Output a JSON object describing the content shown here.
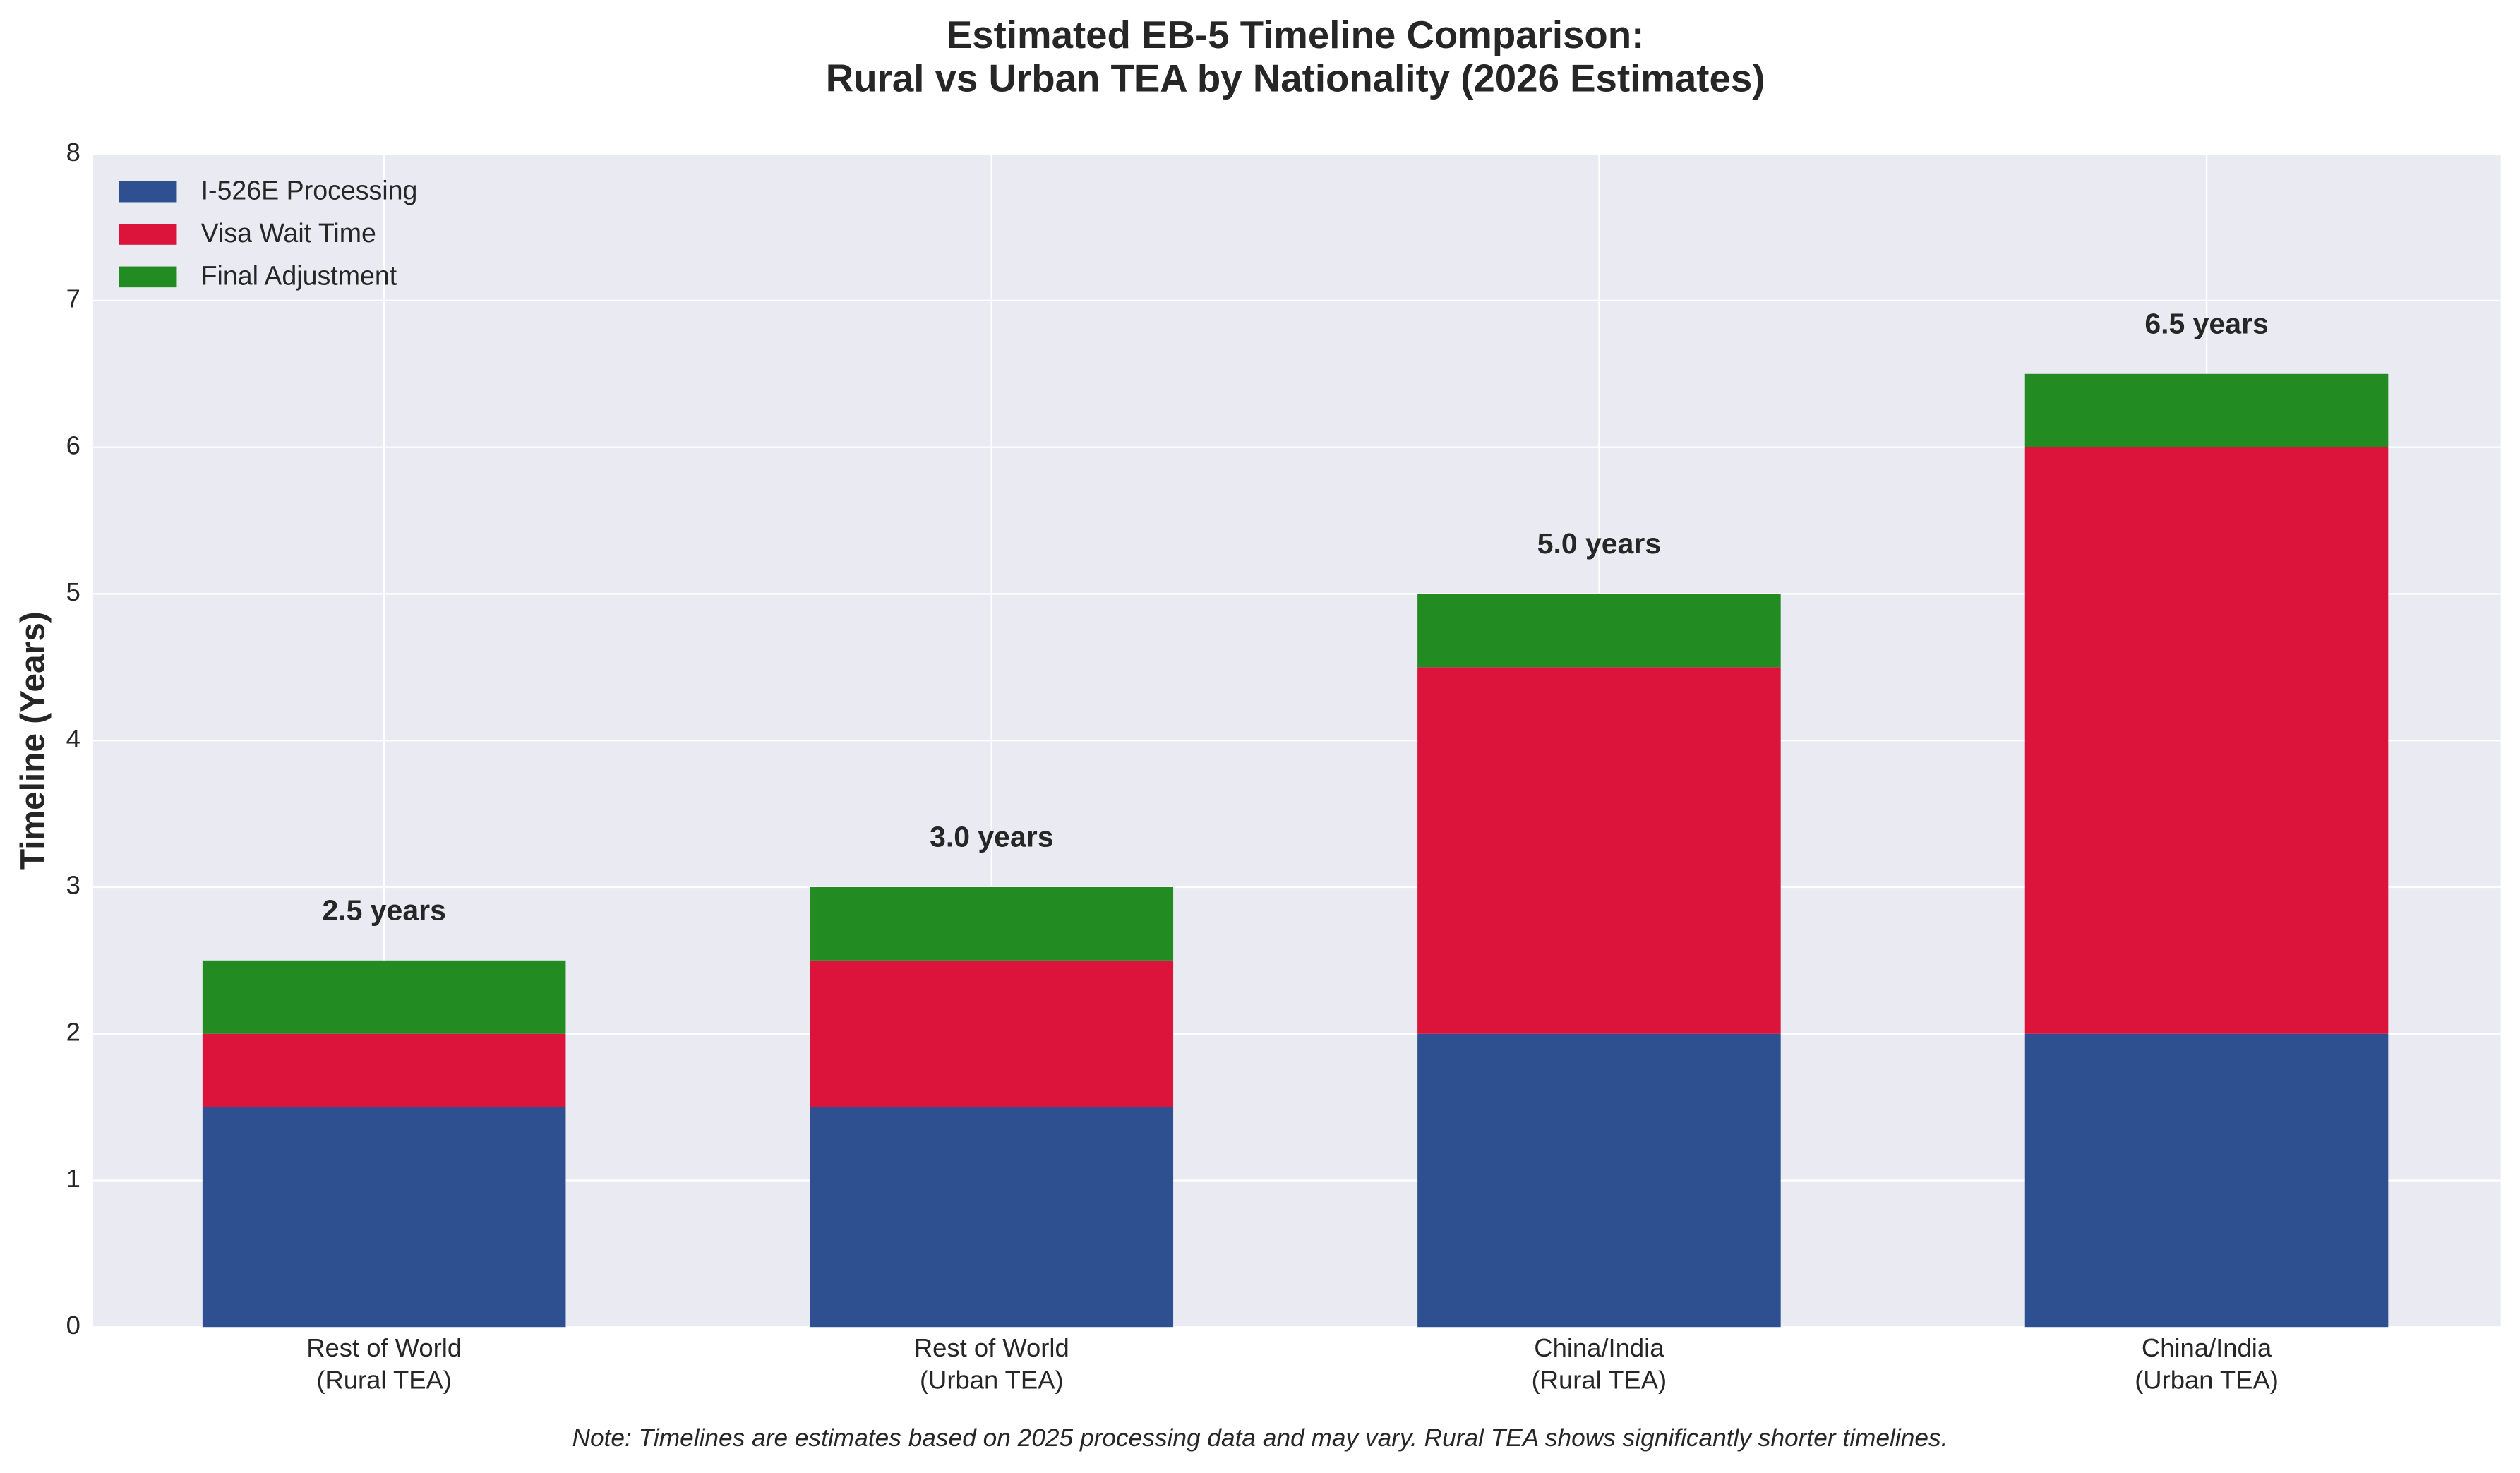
{
  "chart_data": {
    "type": "stacked_bar",
    "title": "Estimated EB-5 Timeline Comparison:\nRural vs Urban TEA by Nationality (2026 Estimates)",
    "ylabel": "Timeline (Years)",
    "note": "Note: Timelines are estimates based on 2025 processing data and may vary. Rural TEA shows significantly shorter timelines.",
    "categories": [
      "Rest of World\n(Rural TEA)",
      "Rest of World\n(Urban TEA)",
      "China/India\n(Rural TEA)",
      "China/India\n(Urban TEA)"
    ],
    "series": [
      {
        "name": "I-526E Processing",
        "color": "#2e5090",
        "values": [
          1.5,
          1.5,
          2,
          2
        ]
      },
      {
        "name": "Visa Wait Time",
        "color": "#dc143c",
        "values": [
          0.5,
          1,
          2.5,
          4
        ]
      },
      {
        "name": "Final Adjustment",
        "color": "#228b22",
        "values": [
          0.5,
          0.5,
          0.5,
          0.5
        ]
      }
    ],
    "totals": [
      2.5,
      3,
      5,
      6.5
    ],
    "total_labels": [
      "2.5 years",
      "3.0 years",
      "5.0 years",
      "6.5 years"
    ],
    "ylim": [
      0,
      8
    ],
    "yticks": [
      0,
      1,
      2,
      3,
      4,
      5,
      6,
      7,
      8
    ],
    "grid": true,
    "legend": "upper-left"
  }
}
